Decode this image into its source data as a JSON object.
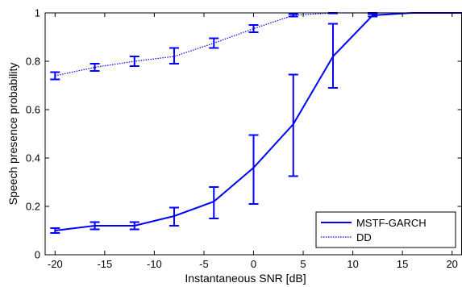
{
  "chart_data": {
    "type": "line",
    "xlabel": "Instantaneous SNR [dB]",
    "ylabel": "Speech presence probability",
    "xlim": [
      -21,
      21
    ],
    "ylim": [
      0,
      1
    ],
    "xticks": [
      -20,
      -15,
      -10,
      -5,
      0,
      5,
      10,
      15,
      20
    ],
    "yticks": [
      0,
      0.2,
      0.4,
      0.6,
      0.8,
      1
    ],
    "xtick_labels": [
      "-20",
      "-15",
      "-10",
      "-5",
      "0",
      "5",
      "10",
      "15",
      "20"
    ],
    "ytick_labels": [
      "0",
      "0.2",
      "0.4",
      "0.6",
      "0.8",
      "1"
    ],
    "grid": false,
    "legend_position": "bottom-right",
    "series": [
      {
        "name": "MSTF-GARCH",
        "style": "solid",
        "color": "#0000ff",
        "x": [
          -20,
          -16,
          -12,
          -8,
          -4,
          0,
          4,
          8,
          12,
          16,
          20,
          21
        ],
        "y": [
          0.1,
          0.12,
          0.12,
          0.16,
          0.22,
          0.36,
          0.54,
          0.82,
          0.99,
          1.0,
          1.0,
          1.0
        ],
        "errorbars": [
          {
            "x": -20,
            "low": 0.09,
            "high": 0.11
          },
          {
            "x": -16,
            "low": 0.105,
            "high": 0.135
          },
          {
            "x": -12,
            "low": 0.105,
            "high": 0.135
          },
          {
            "x": -8,
            "low": 0.12,
            "high": 0.195
          },
          {
            "x": -4,
            "low": 0.15,
            "high": 0.28
          },
          {
            "x": 0,
            "low": 0.21,
            "high": 0.495
          },
          {
            "x": 4,
            "low": 0.325,
            "high": 0.745
          },
          {
            "x": 8,
            "low": 0.69,
            "high": 0.955
          },
          {
            "x": 12,
            "low": 0.985,
            "high": 0.995
          }
        ]
      },
      {
        "name": "DD",
        "style": "dotted",
        "color": "#0000ff",
        "x": [
          -20,
          -16,
          -12,
          -8,
          -4,
          0,
          4,
          8,
          12,
          16,
          20,
          21
        ],
        "y": [
          0.74,
          0.775,
          0.8,
          0.82,
          0.875,
          0.935,
          0.99,
          1.0,
          1.0,
          1.0,
          1.0,
          1.0
        ],
        "errorbars": [
          {
            "x": -20,
            "low": 0.725,
            "high": 0.755
          },
          {
            "x": -16,
            "low": 0.76,
            "high": 0.79
          },
          {
            "x": -12,
            "low": 0.78,
            "high": 0.82
          },
          {
            "x": -8,
            "low": 0.79,
            "high": 0.855
          },
          {
            "x": -4,
            "low": 0.855,
            "high": 0.895
          },
          {
            "x": 0,
            "low": 0.92,
            "high": 0.95
          },
          {
            "x": 4,
            "low": 0.985,
            "high": 0.995
          },
          {
            "x": 8,
            "low": 0.998,
            "high": 1.0
          },
          {
            "x": 12,
            "low": 0.998,
            "high": 1.0
          }
        ]
      }
    ]
  }
}
